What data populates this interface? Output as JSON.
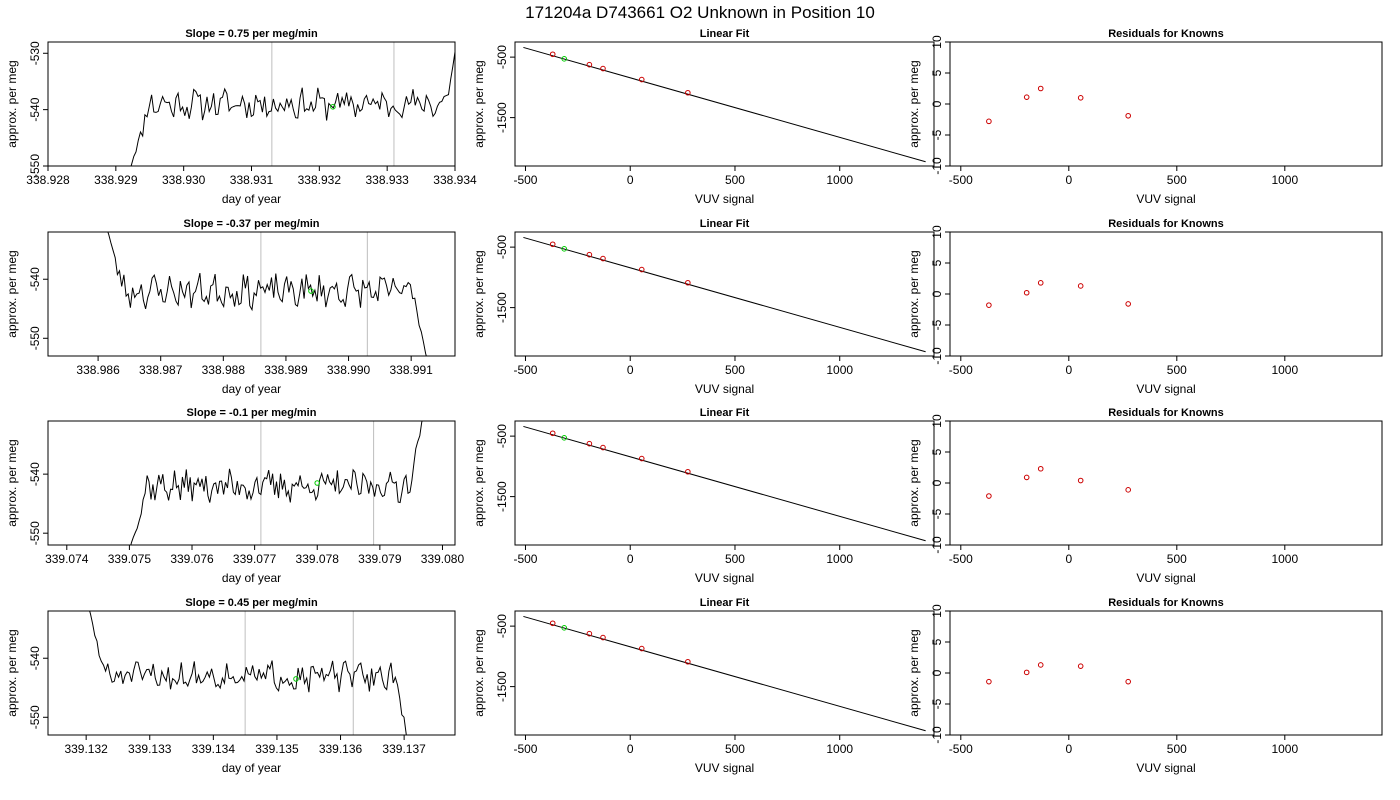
{
  "suptitle": "171204a      D743661    O2 Unknown in Position  10",
  "colors": {
    "trace": "#000000",
    "vline": "#bebebe",
    "unknown": "#00cc00",
    "residual": "#cc0000",
    "fit": "#000000"
  },
  "chart_data": [
    {
      "type": "line",
      "row": 1,
      "col": 1,
      "title": "Slope =  0.75  per meg/min",
      "xlabel": "day of year",
      "ylabel": "approx. per meg",
      "xlim": [
        338.928,
        338.934
      ],
      "ylim": [
        -550,
        -528
      ],
      "xticks": [
        338.928,
        338.929,
        338.93,
        338.931,
        338.932,
        338.933,
        338.934
      ],
      "xtick_labels": [
        "338.928",
        "338.929",
        "338.930",
        "338.931",
        "338.932",
        "338.933",
        "338.934"
      ],
      "yticks": [
        -550,
        -540,
        -530
      ],
      "ytick_labels": [
        "-550",
        "-540",
        "-530"
      ],
      "vlines": [
        338.9313,
        338.9331
      ],
      "trace": {
        "x_start": 338.9292,
        "x_end": 338.9341,
        "start_y": -551,
        "baseline": -539,
        "noise": 2.2,
        "end_y": -524,
        "seed": 11
      },
      "unknown_point": {
        "x": 338.9322,
        "y": -539.5
      }
    },
    {
      "type": "scatter",
      "row": 1,
      "col": 2,
      "title": "Linear Fit",
      "xlabel": "VUV signal",
      "ylabel": "approx. per meg",
      "xlim": [
        -550,
        1450
      ],
      "ylim": [
        -2300,
        -250
      ],
      "xticks": [
        -500,
        0,
        500,
        1000
      ],
      "xtick_labels": [
        "-500",
        "0",
        "500",
        "1000"
      ],
      "yticks": [
        -500,
        -1500
      ],
      "ytick_labels": [
        "-500",
        "-1500"
      ],
      "line": {
        "x": [
          -510,
          1410
        ],
        "y": [
          -340,
          -2230
        ]
      },
      "knowns": {
        "x": [
          -370,
          -195,
          -130,
          55,
          275
        ],
        "y": [
          -453,
          -625,
          -689,
          -871,
          -1089
        ]
      },
      "unknown": {
        "x": -315,
        "y": -528
      }
    },
    {
      "type": "scatter",
      "row": 1,
      "col": 3,
      "title": "Residuals for Knowns",
      "xlabel": "VUV signal",
      "ylabel": "approx. per meg",
      "xlim": [
        -550,
        1450
      ],
      "ylim": [
        -10,
        10
      ],
      "xticks": [
        -500,
        0,
        500,
        1000
      ],
      "xtick_labels": [
        "-500",
        "0",
        "500",
        "1000"
      ],
      "yticks": [
        -10,
        -5,
        0,
        5,
        10
      ],
      "ytick_labels": [
        "-10",
        "-5",
        "0",
        "5",
        "10"
      ],
      "x": [
        -370,
        -195,
        -130,
        55,
        275
      ],
      "y": [
        -2.8,
        1.1,
        2.5,
        1.0,
        -1.9
      ]
    },
    {
      "type": "line",
      "row": 2,
      "col": 1,
      "title": "Slope =  -0.37  per meg/min",
      "xlabel": "day of year",
      "ylabel": "approx. per meg",
      "xlim": [
        338.9852,
        338.9917
      ],
      "ylim": [
        -553,
        -532
      ],
      "xticks": [
        338.986,
        338.987,
        338.988,
        338.989,
        338.99,
        338.991
      ],
      "xtick_labels": [
        "338.986",
        "338.987",
        "338.988",
        "338.989",
        "338.990",
        "338.991"
      ],
      "yticks": [
        -550,
        -540
      ],
      "ytick_labels": [
        "-550",
        "-540"
      ],
      "vlines": [
        338.9886,
        338.9903
      ],
      "trace": {
        "x_start": 338.9861,
        "x_end": 338.9913,
        "start_y": -530,
        "baseline": -542,
        "noise": 2.3,
        "end_y": -556,
        "seed": 23
      },
      "unknown_point": {
        "x": 338.9894,
        "y": -542
      }
    },
    {
      "type": "scatter",
      "row": 2,
      "col": 2,
      "title": "Linear Fit",
      "xlabel": "VUV signal",
      "ylabel": "approx. per meg",
      "xlim": [
        -550,
        1450
      ],
      "ylim": [
        -2300,
        -250
      ],
      "xticks": [
        -500,
        0,
        500,
        1000
      ],
      "xtick_labels": [
        "-500",
        "0",
        "500",
        "1000"
      ],
      "yticks": [
        -500,
        -1500
      ],
      "ytick_labels": [
        "-500",
        "-1500"
      ],
      "line": {
        "x": [
          -510,
          1410
        ],
        "y": [
          -340,
          -2230
        ]
      },
      "knowns": {
        "x": [
          -370,
          -195,
          -130,
          55,
          275
        ],
        "y": [
          -453,
          -625,
          -689,
          -871,
          -1089
        ]
      },
      "unknown": {
        "x": -315,
        "y": -528
      }
    },
    {
      "type": "scatter",
      "row": 2,
      "col": 3,
      "title": "Residuals for Knowns",
      "xlabel": "VUV signal",
      "ylabel": "approx. per meg",
      "xlim": [
        -550,
        1450
      ],
      "ylim": [
        -10,
        10
      ],
      "xticks": [
        -500,
        0,
        500,
        1000
      ],
      "xtick_labels": [
        "-500",
        "0",
        "500",
        "1000"
      ],
      "yticks": [
        -10,
        -5,
        0,
        5,
        10
      ],
      "ytick_labels": [
        "-10",
        "-5",
        "0",
        "5",
        "10"
      ],
      "x": [
        -370,
        -195,
        -130,
        55,
        275
      ],
      "y": [
        -1.8,
        0.2,
        1.8,
        1.3,
        -1.6
      ]
    },
    {
      "type": "line",
      "row": 3,
      "col": 1,
      "title": "Slope =  -0.1  per meg/min",
      "xlabel": "day of year",
      "ylabel": "approx. per meg",
      "xlim": [
        339.0737,
        339.0802
      ],
      "ylim": [
        -552,
        -531
      ],
      "xticks": [
        339.074,
        339.075,
        339.076,
        339.077,
        339.078,
        339.079,
        339.08
      ],
      "xtick_labels": [
        "339.074",
        "339.075",
        "339.076",
        "339.077",
        "339.078",
        "339.079",
        "339.080"
      ],
      "yticks": [
        -550,
        -540
      ],
      "ytick_labels": [
        "-550",
        "-540"
      ],
      "vlines": [
        339.0771,
        339.0789
      ],
      "trace": {
        "x_start": 339.075,
        "x_end": 339.0797,
        "start_y": -553,
        "baseline": -542,
        "noise": 2.2,
        "end_y": -530,
        "seed": 37
      },
      "unknown_point": {
        "x": 339.078,
        "y": -541.5
      }
    },
    {
      "type": "scatter",
      "row": 3,
      "col": 2,
      "title": "Linear Fit",
      "xlabel": "VUV signal",
      "ylabel": "approx. per meg",
      "xlim": [
        -550,
        1450
      ],
      "ylim": [
        -2300,
        -250
      ],
      "xticks": [
        -500,
        0,
        500,
        1000
      ],
      "xtick_labels": [
        "-500",
        "0",
        "500",
        "1000"
      ],
      "yticks": [
        -500,
        -1500
      ],
      "ytick_labels": [
        "-500",
        "-1500"
      ],
      "line": {
        "x": [
          -510,
          1410
        ],
        "y": [
          -340,
          -2230
        ]
      },
      "knowns": {
        "x": [
          -370,
          -195,
          -130,
          55,
          275
        ],
        "y": [
          -453,
          -625,
          -689,
          -871,
          -1089
        ]
      },
      "unknown": {
        "x": -315,
        "y": -528
      }
    },
    {
      "type": "scatter",
      "row": 3,
      "col": 3,
      "title": "Residuals for Knowns",
      "xlabel": "VUV signal",
      "ylabel": "approx. per meg",
      "xlim": [
        -550,
        1450
      ],
      "ylim": [
        -10,
        10
      ],
      "xticks": [
        -500,
        0,
        500,
        1000
      ],
      "xtick_labels": [
        "-500",
        "0",
        "500",
        "1000"
      ],
      "yticks": [
        -10,
        -5,
        0,
        5,
        10
      ],
      "ytick_labels": [
        "-10",
        "-5",
        "0",
        "5",
        "10"
      ],
      "x": [
        -370,
        -195,
        -130,
        55,
        275
      ],
      "y": [
        -2.1,
        0.9,
        2.3,
        0.4,
        -1.1
      ]
    },
    {
      "type": "line",
      "row": 4,
      "col": 1,
      "title": "Slope =  0.45  per meg/min",
      "xlabel": "day of year",
      "ylabel": "approx. per meg",
      "xlim": [
        339.1314,
        339.1378
      ],
      "ylim": [
        -553,
        -532
      ],
      "xticks": [
        339.132,
        339.133,
        339.134,
        339.135,
        339.136,
        339.137
      ],
      "xtick_labels": [
        "339.132",
        "339.133",
        "339.134",
        "339.135",
        "339.136",
        "339.137"
      ],
      "yticks": [
        -550,
        -540
      ],
      "ytick_labels": [
        "-550",
        "-540"
      ],
      "vlines": [
        339.1345,
        339.1362
      ],
      "trace": {
        "x_start": 339.132,
        "x_end": 339.1371,
        "start_y": -530,
        "baseline": -543,
        "noise": 2.0,
        "end_y": -556,
        "seed": 51
      },
      "unknown_point": {
        "x": 339.1353,
        "y": -543.5
      }
    },
    {
      "type": "scatter",
      "row": 4,
      "col": 2,
      "title": "Linear Fit",
      "xlabel": "VUV signal",
      "ylabel": "approx. per meg",
      "xlim": [
        -550,
        1450
      ],
      "ylim": [
        -2300,
        -250
      ],
      "xticks": [
        -500,
        0,
        500,
        1000
      ],
      "xtick_labels": [
        "-500",
        "0",
        "500",
        "1000"
      ],
      "yticks": [
        -500,
        -1500
      ],
      "ytick_labels": [
        "-500",
        "-1500"
      ],
      "line": {
        "x": [
          -510,
          1410
        ],
        "y": [
          -340,
          -2230
        ]
      },
      "knowns": {
        "x": [
          -370,
          -195,
          -130,
          55,
          275
        ],
        "y": [
          -453,
          -625,
          -689,
          -871,
          -1089
        ]
      },
      "unknown": {
        "x": -315,
        "y": -528
      }
    },
    {
      "type": "scatter",
      "row": 4,
      "col": 3,
      "title": "Residuals for Knowns",
      "xlabel": "VUV signal",
      "ylabel": "approx. per meg",
      "xlim": [
        -550,
        1450
      ],
      "ylim": [
        -10,
        10
      ],
      "xticks": [
        -500,
        0,
        500,
        1000
      ],
      "xtick_labels": [
        "-500",
        "0",
        "500",
        "1000"
      ],
      "yticks": [
        -10,
        -5,
        0,
        5,
        10
      ],
      "ytick_labels": [
        "-10",
        "-5",
        "0",
        "5",
        "10"
      ],
      "x": [
        -370,
        -195,
        -130,
        55,
        275
      ],
      "y": [
        -1.4,
        0.1,
        1.3,
        1.1,
        -1.4
      ]
    }
  ]
}
